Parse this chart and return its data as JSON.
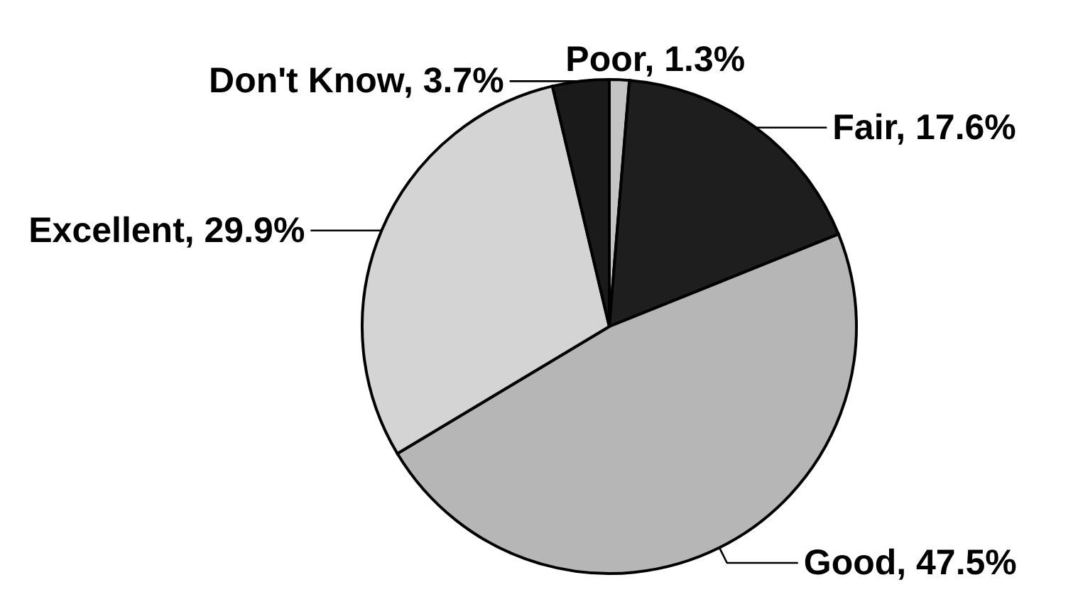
{
  "chart_data": {
    "type": "pie",
    "categories": [
      "Poor",
      "Fair",
      "Good",
      "Excellent",
      "Don't Know"
    ],
    "values": [
      1.3,
      17.6,
      47.5,
      29.9,
      3.7
    ],
    "colors": [
      "#c4c4c4",
      "#1e1e1e",
      "#b6b6b6",
      "#d4d4d4",
      "#1a1a1a"
    ],
    "value_labels": [
      "1.3%",
      "17.6%",
      "47.5%",
      "29.9%",
      "3.7%"
    ]
  }
}
